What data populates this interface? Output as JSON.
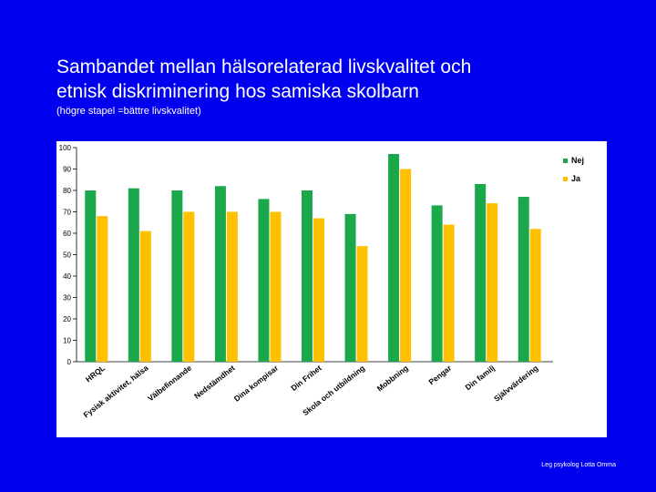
{
  "slide": {
    "title_line1": "Sambandet mellan hälsorelaterad livskvalitet och",
    "title_line2": "etnisk diskriminering hos samiska skolbarn",
    "subtitle": "(högre stapel =bättre livskvalitet)",
    "footer": "Leg psykolog Lotta Omma"
  },
  "colors": {
    "background": "#0000ee",
    "nej": "#1aa84a",
    "ja": "#ffc000"
  },
  "chart_data": {
    "type": "bar",
    "categories": [
      "HRQL",
      "Fysisk aktivitet, hälsa",
      "Välbefinnande",
      "Nedstämdhet",
      "Dina kompisar",
      "Din Frihet",
      "Skola och utbildning",
      "Mobbning",
      "Pengar",
      "Din familj",
      "Självvärdering"
    ],
    "series": [
      {
        "name": "Nej",
        "values": [
          80,
          81,
          80,
          82,
          76,
          80,
          69,
          97,
          73,
          83,
          77
        ]
      },
      {
        "name": "Ja",
        "values": [
          68,
          61,
          70,
          70,
          70,
          67,
          54,
          90,
          64,
          74,
          62
        ]
      }
    ],
    "ylim": [
      0,
      100
    ],
    "yticks": [
      0,
      10,
      20,
      30,
      40,
      50,
      60,
      70,
      80,
      90,
      100
    ],
    "grid": false,
    "legend": "top-right"
  }
}
